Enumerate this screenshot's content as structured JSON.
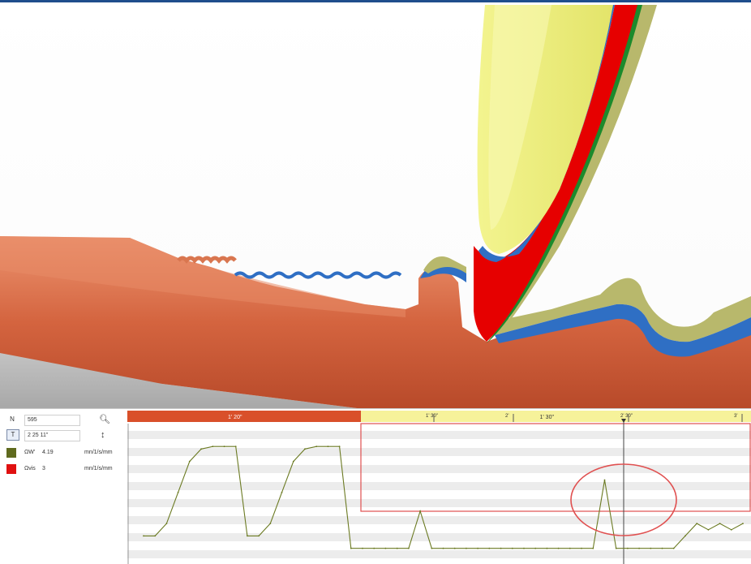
{
  "viewport": {
    "colors": {
      "shaft": "#d25f3c",
      "shaft_top": "#e88a66",
      "tooth_yellow": "#eef07a",
      "tooth_olive": "#b8b86c",
      "red_layer": "#e60000",
      "blue_layer": "#2f6fc4"
    }
  },
  "side_panel": {
    "n_key": "N",
    "n_value": "595",
    "t_key": "T",
    "t_value": "2 25 11\"",
    "search_icon": "search-icon",
    "step_icon": "step-icon",
    "legend": [
      {
        "color": "#5f6a1e",
        "label": "ΩW'",
        "value": "4.19",
        "unit": "mn/1/s/mm"
      },
      {
        "color": "#e01010",
        "label": "Ωvis",
        "value": "3",
        "unit": "mn/1/s/mm"
      }
    ]
  },
  "chart_data": {
    "type": "line",
    "timeline": {
      "segments": [
        {
          "label": "1' 20\"",
          "color": "#d9502a"
        },
        {
          "label": "1' 30\"",
          "color": "#f6f29a"
        }
      ],
      "ticks": [
        "1' 30\"",
        "2'",
        "2' 30\"",
        "3'"
      ]
    },
    "series": [
      {
        "color": "#6b7a22",
        "values": [
          2,
          2,
          3,
          5.5,
          8,
          9,
          9.2,
          9.2,
          9.2,
          2,
          2,
          3,
          5.5,
          8,
          9,
          9.2,
          9.2,
          9.2,
          1,
          1,
          1,
          1,
          1,
          1,
          4,
          1,
          1,
          1,
          1,
          1,
          1,
          1,
          1,
          1,
          1,
          1,
          1,
          1,
          1,
          1,
          6.5,
          1,
          1,
          1,
          1,
          1,
          1,
          2,
          3,
          2.5,
          3,
          2.5,
          3
        ]
      }
    ],
    "highlight_box": {
      "color": "#e05050"
    },
    "marker": {
      "color": "#e05050"
    },
    "grid": true
  }
}
